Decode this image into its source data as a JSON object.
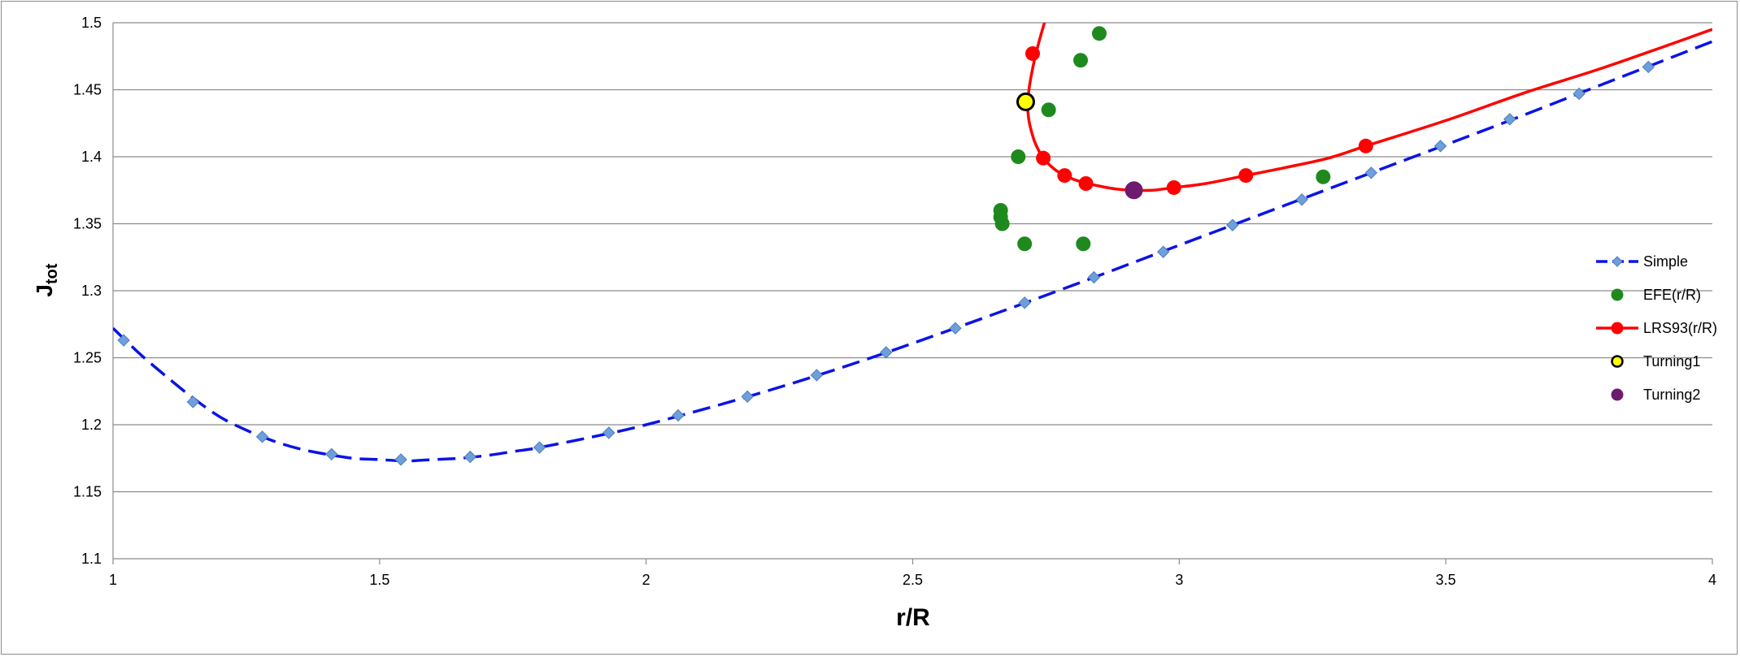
{
  "chart_data": {
    "type": "scatter",
    "xlabel": "r/R",
    "ylabel": {
      "main": "J",
      "sub": "tot"
    },
    "xlim": [
      1,
      4
    ],
    "ylim": [
      1.1,
      1.5
    ],
    "xticks": [
      "1",
      "1.5",
      "2",
      "2.5",
      "3",
      "3.5",
      "4"
    ],
    "xtick_values": [
      1,
      1.5,
      2,
      2.5,
      3,
      3.5,
      4
    ],
    "yticks": [
      "1.1",
      "1.15",
      "1.2",
      "1.25",
      "1.3",
      "1.35",
      "1.4",
      "1.45",
      "1.5"
    ],
    "ytick_values": [
      1.1,
      1.15,
      1.2,
      1.25,
      1.3,
      1.35,
      1.4,
      1.45,
      1.5
    ],
    "grid": "horizontal",
    "legend_position": "right",
    "series": [
      {
        "name": "Simple",
        "color": "#0a14e6",
        "marker": "diamond",
        "marker_color": "#6f9fdb",
        "line": "dashed",
        "points": [
          [
            1.02,
            1.263
          ],
          [
            1.15,
            1.217
          ],
          [
            1.28,
            1.191
          ],
          [
            1.41,
            1.178
          ],
          [
            1.54,
            1.174
          ],
          [
            1.67,
            1.176
          ],
          [
            1.8,
            1.183
          ],
          [
            1.93,
            1.194
          ],
          [
            2.06,
            1.207
          ],
          [
            2.19,
            1.221
          ],
          [
            2.32,
            1.237
          ],
          [
            2.45,
            1.254
          ],
          [
            2.58,
            1.272
          ],
          [
            2.71,
            1.291
          ],
          [
            2.84,
            1.31
          ],
          [
            2.97,
            1.329
          ],
          [
            3.1,
            1.349
          ],
          [
            3.23,
            1.368
          ],
          [
            3.36,
            1.388
          ],
          [
            3.49,
            1.408
          ],
          [
            3.62,
            1.428
          ],
          [
            3.75,
            1.447
          ],
          [
            3.88,
            1.467
          ]
        ],
        "curve": [
          [
            1.0,
            1.272
          ],
          [
            1.05,
            1.253
          ],
          [
            1.1,
            1.236
          ],
          [
            1.15,
            1.22
          ],
          [
            1.2,
            1.206
          ],
          [
            1.25,
            1.196
          ],
          [
            1.3,
            1.188
          ],
          [
            1.35,
            1.182
          ],
          [
            1.4,
            1.178
          ],
          [
            1.45,
            1.175
          ],
          [
            1.5,
            1.174
          ],
          [
            1.55,
            1.173
          ],
          [
            1.6,
            1.174
          ],
          [
            1.65,
            1.175
          ],
          [
            1.7,
            1.177
          ],
          [
            1.75,
            1.18
          ],
          [
            1.8,
            1.183
          ],
          [
            1.9,
            1.191
          ],
          [
            2.0,
            1.2
          ],
          [
            2.2,
            1.222
          ],
          [
            2.4,
            1.247
          ],
          [
            2.6,
            1.275
          ],
          [
            2.8,
            1.304
          ],
          [
            3.0,
            1.334
          ],
          [
            3.2,
            1.364
          ],
          [
            3.4,
            1.394
          ],
          [
            3.6,
            1.424
          ],
          [
            3.8,
            1.455
          ],
          [
            4.0,
            1.486
          ]
        ]
      },
      {
        "name": "EFE(r/R)",
        "color": "#1e8a1e",
        "marker": "circle",
        "line": "none",
        "points": [
          [
            2.665,
            1.36
          ],
          [
            2.665,
            1.355
          ],
          [
            2.668,
            1.35
          ],
          [
            2.698,
            1.4
          ],
          [
            2.71,
            1.335
          ],
          [
            2.755,
            1.435
          ],
          [
            2.815,
            1.472
          ],
          [
            2.82,
            1.335
          ],
          [
            2.85,
            1.492
          ],
          [
            3.27,
            1.385
          ]
        ]
      },
      {
        "name": "LRS93(r/R)",
        "color": "#ff0000",
        "marker": "circle",
        "line": "solid",
        "points": [
          [
            2.725,
            1.477
          ],
          [
            2.745,
            1.399
          ],
          [
            2.785,
            1.386
          ],
          [
            2.825,
            1.38
          ],
          [
            2.99,
            1.377
          ],
          [
            3.125,
            1.386
          ],
          [
            3.35,
            1.408
          ]
        ],
        "curve": [
          [
            2.76,
            1.515
          ],
          [
            2.745,
            1.497
          ],
          [
            2.73,
            1.475
          ],
          [
            2.72,
            1.455
          ],
          [
            2.716,
            1.441
          ],
          [
            2.717,
            1.43
          ],
          [
            2.722,
            1.42
          ],
          [
            2.73,
            1.41
          ],
          [
            2.745,
            1.399
          ],
          [
            2.765,
            1.391
          ],
          [
            2.785,
            1.386
          ],
          [
            2.81,
            1.382
          ],
          [
            2.84,
            1.379
          ],
          [
            2.88,
            1.376
          ],
          [
            2.915,
            1.375
          ],
          [
            2.95,
            1.375
          ],
          [
            2.99,
            1.377
          ],
          [
            3.05,
            1.38
          ],
          [
            3.125,
            1.386
          ],
          [
            3.2,
            1.392
          ],
          [
            3.28,
            1.399
          ],
          [
            3.35,
            1.408
          ],
          [
            3.5,
            1.427
          ],
          [
            3.65,
            1.448
          ],
          [
            3.8,
            1.467
          ],
          [
            4.0,
            1.495
          ]
        ]
      },
      {
        "name": "Turning1",
        "color": "#ffff00",
        "marker": "circle-outlined",
        "line": "none",
        "points": [
          [
            2.712,
            1.441
          ]
        ]
      },
      {
        "name": "Turning2",
        "color": "#6e1a6e",
        "marker": "circle",
        "line": "none",
        "points": [
          [
            2.915,
            1.375
          ]
        ]
      }
    ]
  }
}
